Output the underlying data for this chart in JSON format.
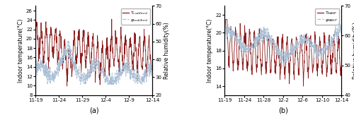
{
  "fig_width": 5.0,
  "fig_height": 1.87,
  "dpi": 100,
  "subplot_a": {
    "xlabel_ticks": [
      "11-19",
      "11-24",
      "11-29",
      "12-4",
      "12-9",
      "12-14"
    ],
    "ylabel_left": "Indoor temperature(°C)",
    "ylabel_right": "Relative humidity(%)",
    "ylim_left": [
      8,
      27
    ],
    "ylim_right": [
      20,
      70
    ],
    "yticks_left": [
      8,
      10,
      12,
      14,
      16,
      18,
      20,
      22,
      24,
      26
    ],
    "yticks_right": [
      20,
      30,
      40,
      50,
      60,
      70
    ],
    "temp_color": "#8B1A1A",
    "hum_color": "#aabfd4",
    "legend_temp": "T$_{coalfired}$",
    "legend_hum": "$\\varphi_{coalfired}$",
    "label": "(a)"
  },
  "subplot_b": {
    "xlabel_ticks": [
      "11-19",
      "11-24",
      "11-28",
      "12-2",
      "12-6",
      "12-10",
      "12-14"
    ],
    "ylabel_left": "Indoor temperature(°C)",
    "ylabel_right": "Relative humidity(%)",
    "ylim_left": [
      13,
      23
    ],
    "ylim_right": [
      40,
      70
    ],
    "yticks_left": [
      14,
      16,
      18,
      20,
      22
    ],
    "yticks_right": [
      40,
      50,
      60,
      70
    ],
    "temp_color": "#8B1A1A",
    "hum_color": "#aabfd4",
    "legend_temp": "T$_{SAHP}$",
    "legend_hum": "$\\varphi_{SAHP}$",
    "label": "(b)"
  }
}
